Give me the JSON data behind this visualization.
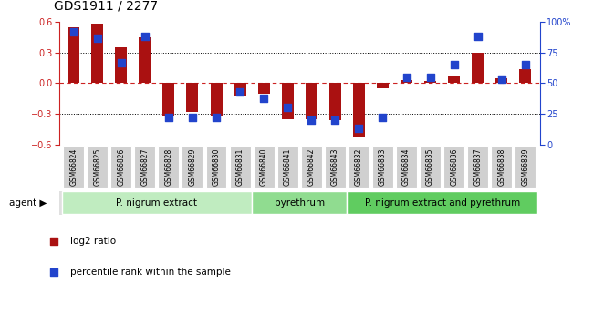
{
  "title": "GDS1911 / 2277",
  "categories": [
    "GSM66824",
    "GSM66825",
    "GSM66826",
    "GSM66827",
    "GSM66828",
    "GSM66829",
    "GSM66830",
    "GSM66831",
    "GSM66840",
    "GSM66841",
    "GSM66842",
    "GSM66843",
    "GSM66832",
    "GSM66833",
    "GSM66834",
    "GSM66835",
    "GSM66836",
    "GSM66837",
    "GSM66838",
    "GSM66839"
  ],
  "log2_ratio": [
    0.55,
    0.58,
    0.35,
    0.45,
    -0.32,
    -0.28,
    -0.32,
    -0.12,
    -0.1,
    -0.35,
    -0.35,
    -0.36,
    -0.53,
    -0.05,
    0.03,
    0.02,
    0.07,
    0.3,
    0.05,
    0.14
  ],
  "pct_rank": [
    92,
    87,
    67,
    88,
    22,
    22,
    22,
    43,
    38,
    30,
    20,
    20,
    13,
    22,
    55,
    55,
    65,
    88,
    53,
    65
  ],
  "groups": [
    {
      "label": "P. nigrum extract",
      "start": 0,
      "end": 8,
      "color": "#c0ecc0"
    },
    {
      "label": "pyrethrum",
      "start": 8,
      "end": 12,
      "color": "#90dc90"
    },
    {
      "label": "P. nigrum extract and pyrethrum",
      "start": 12,
      "end": 20,
      "color": "#60cc60"
    }
  ],
  "bar_color": "#aa1111",
  "dot_color": "#2244cc",
  "ylim_left": [
    -0.6,
    0.6
  ],
  "ylim_right": [
    0,
    100
  ],
  "bar_width": 0.5,
  "dot_size": 28,
  "title_fontsize": 10,
  "tick_fontsize": 7,
  "cat_fontsize": 5.5,
  "group_fontsize": 7.5,
  "legend_fontsize": 7.5
}
